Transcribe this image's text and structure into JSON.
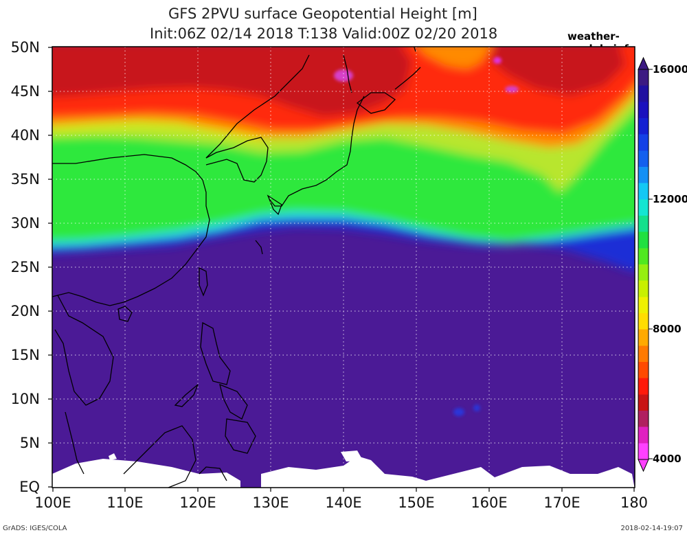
{
  "header": {
    "title_line1": "GFS 2PVU surface Geopotential Height [m]",
    "title_line2": "Init:06Z 02/14 2018 T:138 Valid:00Z 02/20 2018",
    "site": "weather-models.info"
  },
  "map": {
    "lat_labels": [
      "50N",
      "45N",
      "40N",
      "35N",
      "30N",
      "25N",
      "20N",
      "15N",
      "10N",
      "5N",
      "EQ"
    ],
    "lon_labels": [
      "100E",
      "110E",
      "120E",
      "130E",
      "140E",
      "150E",
      "160E",
      "170E",
      "180"
    ],
    "grid": "dotted",
    "colors": {
      "low_violet": "#4b1a96",
      "blue": "#1c2fd6",
      "cyan": "#2fe0e6",
      "green": "#2ee83c",
      "yellow_green": "#b8e62e",
      "orange": "#ff8a00",
      "red": "#ff2a10",
      "dark_red": "#c8141c",
      "magenta": "#d640c8",
      "coast": "#000000"
    }
  },
  "colorbar": {
    "labels": [
      "16000",
      "12000",
      "8000",
      "4000"
    ],
    "colors": [
      "#ff40ff",
      "#e020c0",
      "#b02060",
      "#c81414",
      "#ff1a0a",
      "#ff4a00",
      "#ff7a00",
      "#ffaa00",
      "#ffdd00",
      "#eef000",
      "#c8f000",
      "#96ee10",
      "#50e820",
      "#20e040",
      "#14e08c",
      "#14e6d2",
      "#14c8f5",
      "#1490f5",
      "#1460ee",
      "#1440e6",
      "#1420d2",
      "#1a10be",
      "#2010a0",
      "#3c1a82"
    ]
  },
  "footer": {
    "left": "GrADS: IGES/COLA",
    "right": "2018-02-14-19:07"
  }
}
